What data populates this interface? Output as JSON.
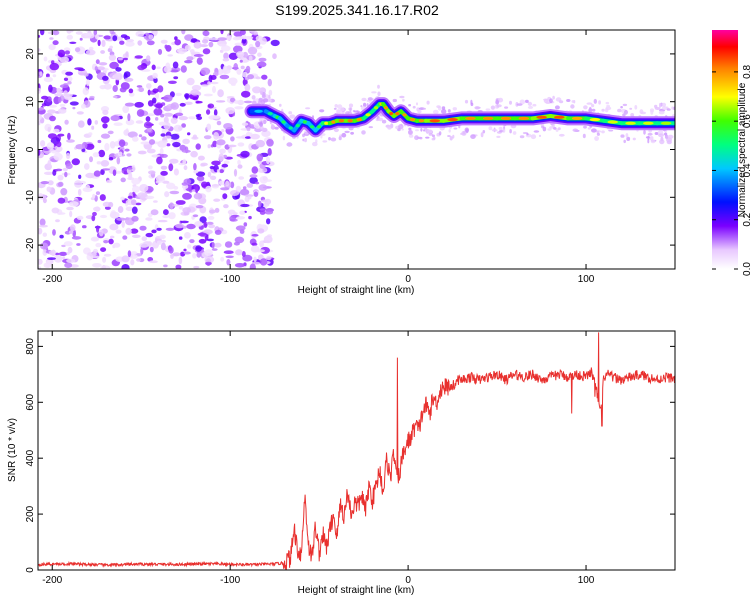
{
  "title": "S199.2025.341.16.17.R02",
  "chart_data": [
    {
      "type": "heatmap",
      "panel": "spectrogram",
      "title": "S199.2025.341.16.17.R02",
      "xlabel": "Height of straight line (km)",
      "ylabel": "Frequency (Hz)",
      "xlim": [
        -208,
        150
      ],
      "ylim": [
        -25,
        25
      ],
      "xticks": [
        -200,
        -100,
        0,
        100
      ],
      "xtick_labels": [
        "-200",
        "-100",
        "0",
        "100"
      ],
      "yticks": [
        20,
        10,
        0,
        -10,
        -20
      ],
      "ytick_labels": [
        "20",
        "10",
        "0",
        "-10",
        "-20"
      ],
      "noise_region_x": [
        -208,
        -77
      ],
      "signal_ridge": {
        "x": [
          -88,
          -80,
          -75,
          -72,
          -68,
          -64,
          -60,
          -56,
          -52,
          -48,
          -44,
          -40,
          -35,
          -30,
          -25,
          -20,
          -16,
          -14,
          -11,
          -8,
          -4,
          0,
          5,
          10,
          20,
          30,
          40,
          50,
          60,
          70,
          80,
          90,
          100,
          110,
          120,
          130,
          140,
          150
        ],
        "frequency_hz": [
          8,
          8,
          7,
          6.5,
          5,
          4,
          6,
          5.5,
          4,
          5.5,
          5.5,
          6,
          6,
          6,
          6.5,
          8,
          9.5,
          9.5,
          8,
          7,
          8,
          6.5,
          6,
          6,
          6,
          6.5,
          6.5,
          6.5,
          6.5,
          6.5,
          7,
          6.5,
          6.5,
          6,
          5.5,
          5.5,
          5.5,
          5.5
        ],
        "normalized_amplitude": [
          0.4,
          0.45,
          0.55,
          0.6,
          0.5,
          0.5,
          0.55,
          0.6,
          0.5,
          0.65,
          0.8,
          0.85,
          0.85,
          0.85,
          0.8,
          0.6,
          0.75,
          0.8,
          0.85,
          0.9,
          0.8,
          0.85,
          0.8,
          0.85,
          0.9,
          0.85,
          0.8,
          0.85,
          0.8,
          0.85,
          0.9,
          0.85,
          0.75,
          0.7,
          0.7,
          0.7,
          0.7,
          0.65
        ]
      },
      "colorbar": {
        "label": "Normalized spectral amplitude",
        "range": [
          0,
          0.97
        ],
        "ticks": [
          0.0,
          0.2,
          0.4,
          0.6,
          0.8
        ],
        "tick_labels": [
          "0.0",
          "0.2",
          "0.4",
          "0.6",
          "0.8"
        ]
      }
    },
    {
      "type": "line",
      "panel": "snr",
      "xlabel": "Height of straight line (km)",
      "ylabel": "SNR (10 * v/v)",
      "xlim": [
        -208,
        150
      ],
      "ylim": [
        0,
        855
      ],
      "xticks": [
        -200,
        -100,
        0,
        100
      ],
      "xtick_labels": [
        "-200",
        "-100",
        "0",
        "100"
      ],
      "yticks": [
        0,
        200,
        400,
        600,
        800
      ],
      "ytick_labels": [
        "0",
        "200",
        "400",
        "600",
        "800"
      ],
      "color": "#e8302e",
      "series": [
        {
          "name": "SNR",
          "x": [
            -208,
            -190,
            -170,
            -150,
            -130,
            -110,
            -90,
            -75,
            -70,
            -66,
            -64,
            -62,
            -60,
            -58,
            -56,
            -54,
            -52,
            -50,
            -48,
            -46,
            -44,
            -42,
            -40,
            -38,
            -36,
            -34,
            -32,
            -30,
            -28,
            -26,
            -24,
            -22,
            -20,
            -18,
            -16,
            -14,
            -12,
            -10,
            -8,
            -6,
            -4,
            -2,
            0,
            2,
            4,
            6,
            8,
            10,
            12,
            14,
            16,
            18,
            20,
            22,
            24,
            26,
            28,
            30,
            35,
            40,
            45,
            50,
            55,
            60,
            65,
            70,
            75,
            80,
            85,
            90,
            95,
            100,
            103,
            106,
            108,
            110,
            112,
            115,
            120,
            125,
            130,
            135,
            140,
            145,
            150
          ],
          "values": [
            20,
            22,
            18,
            21,
            20,
            22,
            19,
            22,
            25,
            45,
            150,
            70,
            60,
            270,
            90,
            45,
            160,
            60,
            130,
            80,
            140,
            200,
            120,
            240,
            190,
            280,
            200,
            240,
            230,
            270,
            210,
            300,
            250,
            300,
            360,
            280,
            400,
            330,
            420,
            300,
            380,
            430,
            460,
            480,
            520,
            500,
            560,
            590,
            560,
            610,
            600,
            640,
            660,
            650,
            670,
            660,
            680,
            680,
            690,
            680,
            690,
            700,
            680,
            700,
            690,
            700,
            680,
            690,
            700,
            690,
            700,
            690,
            710,
            640,
            560,
            690,
            700,
            690,
            680,
            690,
            700,
            690,
            680,
            690,
            685
          ]
        }
      ],
      "spikes": [
        {
          "x": -6,
          "value": 760
        },
        {
          "x": 92,
          "value": 560
        },
        {
          "x": 107,
          "value": 850
        },
        {
          "x": 109,
          "value": 515
        },
        {
          "x": 105,
          "value": 620
        }
      ]
    }
  ]
}
